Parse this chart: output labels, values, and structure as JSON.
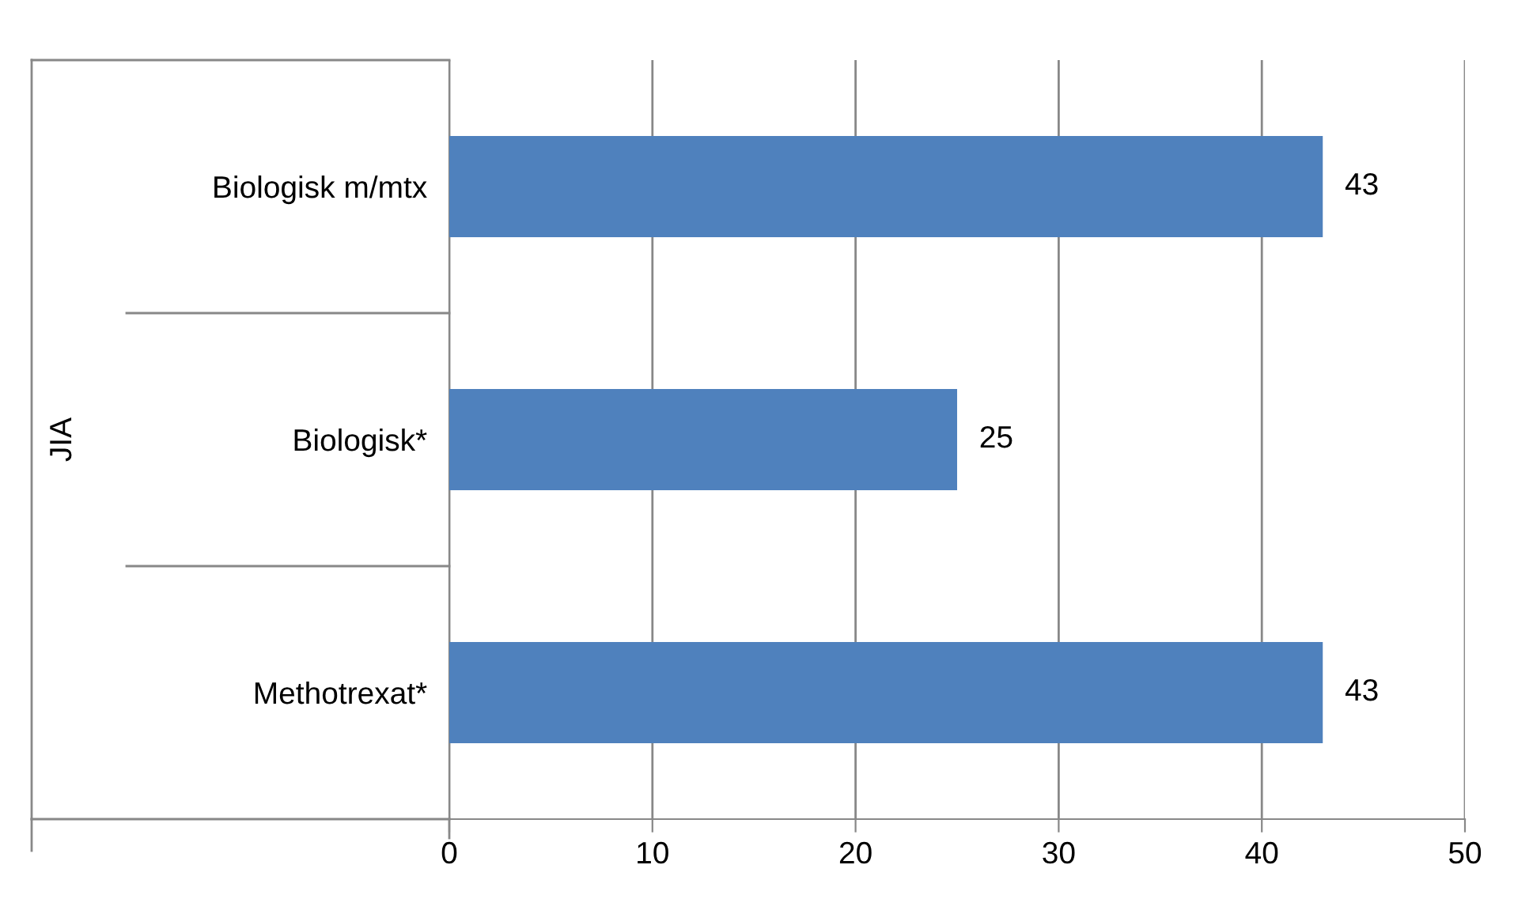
{
  "chart_data": {
    "type": "bar",
    "orientation": "horizontal",
    "ylabel": "JIA",
    "categories": [
      "Biologisk m/mtx",
      "Biologisk*",
      "Methotrexat*"
    ],
    "values": [
      43,
      25,
      43
    ],
    "color": "#4f81bd",
    "xlim": [
      0,
      50
    ],
    "xticks": [
      0,
      10,
      20,
      30,
      40,
      50
    ],
    "grid": "x",
    "data_labels": true
  }
}
